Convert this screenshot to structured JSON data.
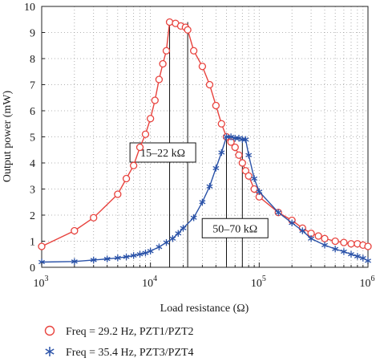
{
  "chart_data": {
    "type": "line",
    "xscale": "log",
    "xlim": [
      1000,
      1000000
    ],
    "ylim": [
      0,
      10
    ],
    "xlabel": "Load resistance (Ω)",
    "ylabel": "Output power (mW)",
    "grid": true,
    "x_ticks": [
      {
        "value": 1000,
        "base": "10",
        "exp": "3"
      },
      {
        "value": 10000,
        "base": "10",
        "exp": "4"
      },
      {
        "value": 100000,
        "base": "10",
        "exp": "5"
      },
      {
        "value": 1000000,
        "base": "10",
        "exp": "6"
      }
    ],
    "y_ticks": [
      0,
      1,
      2,
      3,
      4,
      5,
      6,
      7,
      8,
      9,
      10
    ],
    "series": [
      {
        "name": "Freq = 29.2 Hz, PZT1/PZT2",
        "color": "#e8433e",
        "marker": "circle",
        "x": [
          1000,
          2000,
          3000,
          5000,
          6000,
          7000,
          8000,
          9000,
          10000,
          11000,
          12000,
          13000,
          14000,
          15000,
          17000,
          19000,
          21000,
          22000,
          25000,
          30000,
          35000,
          40000,
          45000,
          50000,
          55000,
          60000,
          65000,
          70000,
          75000,
          80000,
          90000,
          100000,
          150000,
          200000,
          250000,
          300000,
          350000,
          400000,
          500000,
          600000,
          700000,
          800000,
          900000,
          1000000
        ],
        "y": [
          0.8,
          1.4,
          1.9,
          2.8,
          3.4,
          3.9,
          4.6,
          5.1,
          5.7,
          6.4,
          7.2,
          7.8,
          8.3,
          9.4,
          9.35,
          9.25,
          9.2,
          9.1,
          8.3,
          7.7,
          7.0,
          6.2,
          5.5,
          5.0,
          4.8,
          4.6,
          4.3,
          4.0,
          3.7,
          3.5,
          3.0,
          2.7,
          2.1,
          1.8,
          1.5,
          1.3,
          1.2,
          1.1,
          1.0,
          0.95,
          0.9,
          0.9,
          0.85,
          0.8
        ]
      },
      {
        "name": "Freq = 35.4 Hz, PZT3/PZT4",
        "color": "#2a52a8",
        "marker": "star",
        "x": [
          1000,
          2000,
          3000,
          4000,
          5000,
          6000,
          7000,
          8000,
          9000,
          10000,
          12000,
          14000,
          16000,
          18000,
          20000,
          25000,
          30000,
          35000,
          40000,
          45000,
          50000,
          55000,
          60000,
          65000,
          70000,
          75000,
          80000,
          90000,
          100000,
          150000,
          200000,
          250000,
          300000,
          400000,
          500000,
          600000,
          700000,
          800000,
          900000,
          1000000
        ],
        "y": [
          0.2,
          0.22,
          0.28,
          0.32,
          0.36,
          0.4,
          0.45,
          0.5,
          0.55,
          0.62,
          0.78,
          0.95,
          1.1,
          1.3,
          1.5,
          1.9,
          2.5,
          3.1,
          3.8,
          4.4,
          5.0,
          5.0,
          4.95,
          4.95,
          4.9,
          4.9,
          4.3,
          3.4,
          2.9,
          2.1,
          1.7,
          1.4,
          1.1,
          0.85,
          0.7,
          0.6,
          0.5,
          0.42,
          0.35,
          0.25
        ]
      }
    ],
    "annotations": [
      {
        "text": "15–22 kΩ",
        "x_from": 15000,
        "x_to": 22000,
        "y_top": 9.4,
        "label_x": 13000,
        "label_y": 4.4
      },
      {
        "text": "50–70 kΩ",
        "x_from": 50000,
        "x_to": 70000,
        "y_top": 5.0,
        "label_x": 60000,
        "label_y": 1.5
      }
    ]
  }
}
